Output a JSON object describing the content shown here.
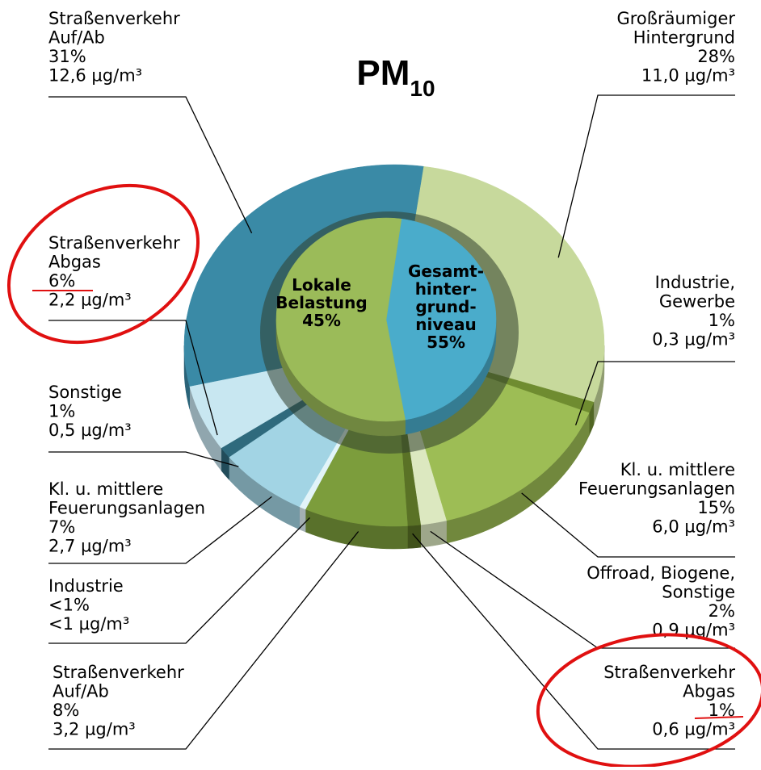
{
  "chart_data": {
    "type": "pie",
    "title": "PM",
    "title_subscript": "10",
    "inner": {
      "categories": [
        "Lokale\nBelastung",
        "Gesamt-\nhinter-\ngrund-\nniveau"
      ],
      "values": [
        45,
        55
      ],
      "value_labels": [
        "45%",
        "55%"
      ],
      "colors": [
        "#4aaccb",
        "#9bbb59"
      ]
    },
    "outer": {
      "categories": [
        "Großräumiger\nHintergrund",
        "Industrie,\nGewerbe",
        "Kl. u. mittlere\nFeuerungsanlagen",
        "Offroad, Biogene,\nSonstige",
        "Straßenverkehr\nAbgas",
        "Straßenverkehr\nAuf/Ab",
        "Industrie",
        "Kl. u. mittlere\nFeuerungsanlagen",
        "Sonstige",
        "Straßenverkehr\nAbgas",
        "Straßenverkehr\nAuf/Ab"
      ],
      "values": [
        28,
        1,
        15,
        2,
        1,
        8,
        0.5,
        7,
        1,
        6,
        31
      ],
      "value_labels": [
        "28%",
        "1%",
        "15%",
        "2%",
        "1%",
        "8%",
        "<1%",
        "7%",
        "1%",
        "6%",
        "31%"
      ],
      "concentration_labels": [
        "11,0 µg/m³",
        "0,3 µg/m³",
        "6,0 µg/m³",
        "0,9 µg/m³",
        "0,6 µg/m³",
        "3,2 µg/m³",
        "<1 µg/m³",
        "2,7 µg/m³",
        "0,5 µg/m³",
        "2,2 µg/m³",
        "12,6 µg/m³"
      ],
      "colors": [
        "#c7d99c",
        "#6f8c30",
        "#9dbd55",
        "#dce8c0",
        "#5a7226",
        "#7c9d3c",
        "#e2f4f9",
        "#a2d4e4",
        "#2f6a7d",
        "#c8e7f1",
        "#3a8aa6"
      ]
    }
  }
}
